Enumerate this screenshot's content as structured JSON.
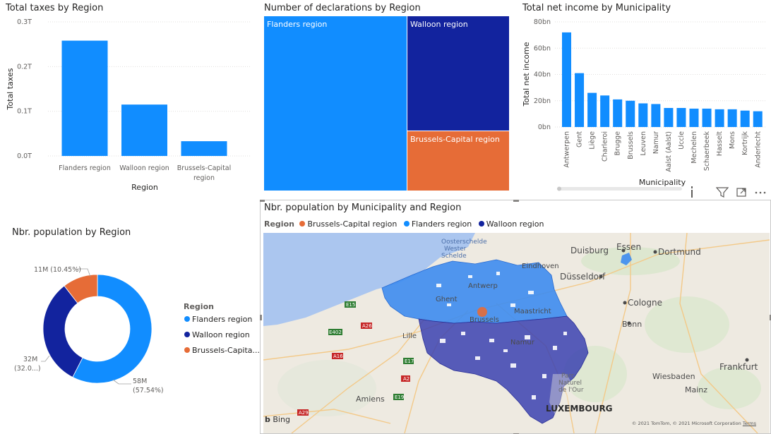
{
  "colors": {
    "flanders": "#118dff",
    "wallonia": "#12239e",
    "brussels": "#e66c37"
  },
  "taxes": {
    "title": "Total taxes by Region",
    "ylabel": "Total taxes",
    "xlabel": "Region",
    "ticks": [
      "0.3T",
      "0.2T",
      "0.1T",
      "0.0T"
    ]
  },
  "declarations": {
    "title": "Number of declarations by Region",
    "cells": [
      "Flanders region",
      "Walloon region",
      "Brussels-Capital region"
    ]
  },
  "income": {
    "title": "Total net income by Municipality",
    "ylabel": "Total net income",
    "xlabel": "Municipality",
    "ticks": [
      "80bn",
      "60bn",
      "40bn",
      "20bn",
      "0bn"
    ]
  },
  "population": {
    "title": "Nbr. population by Region",
    "legend_title": "Region",
    "legend": [
      "Flanders region",
      "Walloon region",
      "Brussels-Capita..."
    ],
    "label_brussels": "11M (10.45%)",
    "label_wallonia_value": "32M",
    "label_wallonia_pct": "(32.0...)",
    "label_flanders_value": "58M",
    "label_flanders_pct": "(57.54%)"
  },
  "map": {
    "title": "Nbr. population by Municipality and Region",
    "legend_title": "Region",
    "legend": [
      "Brussels-Capital region",
      "Flanders region",
      "Walloon region"
    ],
    "cities": {
      "duisburg": "Duisburg",
      "essen": "Essen",
      "dortmund": "Dortmund",
      "eindhoven": "Eindhoven",
      "dusseldorf": "Düsseldorf",
      "antwerp": "Antwerp",
      "gent": "Ghent",
      "maastricht": "Maastricht",
      "cologne": "Cologne",
      "bonn": "Bonn",
      "brussels": "Brussels",
      "lille": "Lille",
      "namur": "Namur",
      "frankfurt": "Frankfurt",
      "wiesbaden": "Wiesbaden",
      "mainz": "Mainz",
      "amiens": "Amiens",
      "luxembourg": "LUXEMBOURG",
      "oosterschelde": "Oosterschelde",
      "wester": "Wester",
      "schelde": "Schelde",
      "parc1": "Parc",
      "parc2": "Naturel",
      "parc3": "de l'Our"
    },
    "roads": [
      "E15",
      "E402",
      "A26",
      "A16",
      "E17",
      "A2",
      "E19",
      "A29"
    ],
    "bing": "Bing",
    "attribution": "© 2021 TomTom, © 2021 Microsoft Corporation",
    "terms": "Terms"
  },
  "chart_data": [
    {
      "type": "bar",
      "title": "Total taxes by Region",
      "xlabel": "Region",
      "ylabel": "Total taxes",
      "categories": [
        "Flanders region",
        "Walloon region",
        "Brussels-Capital region"
      ],
      "values": [
        0.258,
        0.115,
        0.033
      ],
      "unit": "T",
      "ylim": [
        0,
        0.3
      ]
    },
    {
      "type": "treemap",
      "title": "Number of declarations by Region",
      "categories": [
        "Flanders region",
        "Walloon region",
        "Brussels-Capital region"
      ],
      "values": [
        0.58,
        0.32,
        0.1
      ]
    },
    {
      "type": "bar",
      "title": "Total net income by Municipality",
      "xlabel": "Municipality",
      "ylabel": "Total net income",
      "categories": [
        "Antwerpen",
        "Gent",
        "Liège",
        "Charleroi",
        "Brugge",
        "Brussels",
        "Leuven",
        "Namur",
        "Aalst (Aalst)",
        "Uccle",
        "Mechelen",
        "Schaerbeek",
        "Hasselt",
        "Mons",
        "Kortrijk",
        "Anderlecht"
      ],
      "values": [
        72,
        41,
        26,
        24,
        21,
        20,
        18,
        17.5,
        14.5,
        14.5,
        14,
        14,
        13.5,
        13.5,
        12.5,
        12
      ],
      "unit": "bn",
      "ylim": [
        0,
        80
      ]
    },
    {
      "type": "pie",
      "title": "Nbr. population by Region",
      "categories": [
        "Flanders region",
        "Walloon region",
        "Brussels-Capital region"
      ],
      "values": [
        58,
        32,
        11
      ],
      "percentages": [
        57.54,
        32.0,
        10.45
      ]
    }
  ]
}
